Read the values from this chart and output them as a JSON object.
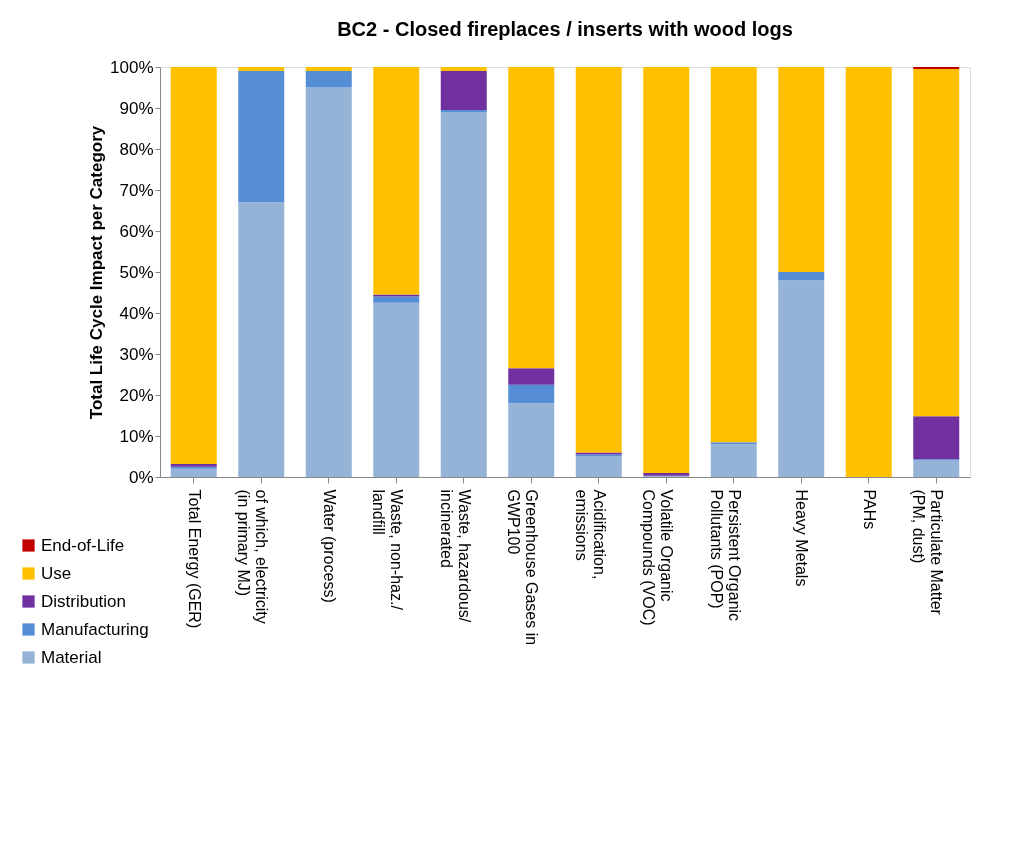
{
  "chart_data": {
    "type": "bar",
    "stacked": true,
    "title": "BC2 - Closed fireplaces  / inserts with wood logs",
    "ylabel": "Total Life Cycle Impact per Category",
    "categories": [
      "Total Energy (GER)",
      "of which, electricity (in primary MJ)",
      "Water (process)",
      "Waste, non-haz./ landfill",
      "Waste, hazardous/ incinerated",
      "Greenhouse Gases in GWP100",
      "Acidification, emissions",
      "Volatile Organic Compounds (VOC)",
      "Persistent Organic Pollutants (POP)",
      "Heavy Metals",
      "PAHs",
      "Particulate Matter (PM, dust)"
    ],
    "series": [
      {
        "name": "Material",
        "color": "#95b3d7",
        "values": [
          2,
          67,
          95,
          42.5,
          89,
          18,
          5,
          0.3,
          8,
          48,
          0,
          4
        ]
      },
      {
        "name": "Manufacturing",
        "color": "#558ed5",
        "values": [
          0.5,
          32,
          4,
          1.5,
          0.5,
          4.5,
          0.5,
          0,
          0.5,
          2,
          0,
          0.3
        ]
      },
      {
        "name": "Distribution",
        "color": "#7030a0",
        "values": [
          0.7,
          0,
          0,
          0.5,
          9.5,
          4,
          0.5,
          0.7,
          0,
          0,
          0,
          10.5
        ]
      },
      {
        "name": "Use",
        "color": "#ffc000",
        "values": [
          96.8,
          1,
          1,
          55.5,
          1,
          73.5,
          94,
          99,
          91.5,
          50,
          100,
          84.7
        ]
      },
      {
        "name": "End-of-Life",
        "color": "#c00000",
        "values": [
          0,
          0,
          0,
          0,
          0,
          0,
          0,
          0,
          0,
          0,
          0,
          0.5
        ]
      }
    ],
    "ylim": [
      0,
      100
    ],
    "yticks": [
      {
        "value": 0,
        "label": "0%"
      },
      {
        "value": 10,
        "label": "10%"
      },
      {
        "value": 20,
        "label": "20%"
      },
      {
        "value": 30,
        "label": "30%"
      },
      {
        "value": 40,
        "label": "40%"
      },
      {
        "value": 50,
        "label": "50%"
      },
      {
        "value": 60,
        "label": "60%"
      },
      {
        "value": 70,
        "label": "70%"
      },
      {
        "value": 80,
        "label": "80%"
      },
      {
        "value": 90,
        "label": "90%"
      },
      {
        "value": 100,
        "label": "100%"
      }
    ],
    "grid": false,
    "legend": "bottom left"
  }
}
